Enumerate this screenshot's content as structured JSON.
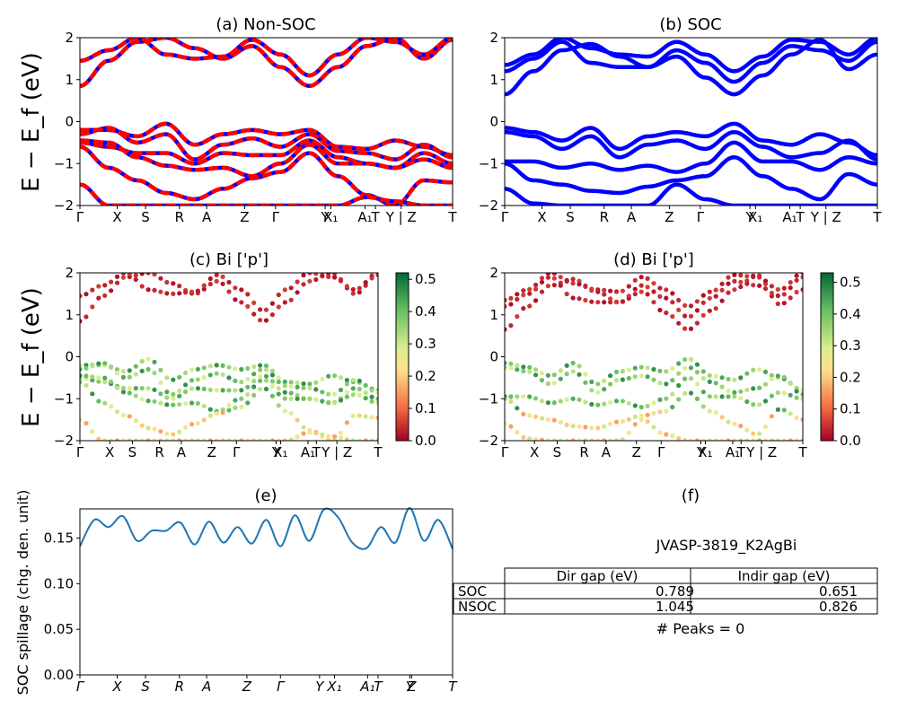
{
  "figure": {
    "ylabel": "E − E_f (eV)",
    "kpath_labels": [
      "Γ",
      "X",
      "S",
      "R",
      "A",
      "Z",
      "Γ",
      "Y",
      "X₁",
      "A₁",
      "T",
      "Y | Z",
      "T"
    ],
    "kpath_labels_italic": [
      "Γ",
      "X",
      "S",
      "R",
      "A",
      "Z",
      "Γ",
      "Y",
      "X₁",
      "A₁",
      "T",
      "Y",
      "Z",
      "T"
    ]
  },
  "panels": {
    "a": {
      "title": "(a) Non-SOC",
      "yticks": [
        "2",
        "1",
        "0",
        "−1",
        "−2"
      ]
    },
    "b": {
      "title": "(b) SOC",
      "yticks": [
        "2",
        "1",
        "0",
        "−1",
        "−2"
      ]
    },
    "c": {
      "title": "(c)  Bi ['p']",
      "yticks": [
        "2",
        "1",
        "0",
        "−1",
        "−2"
      ],
      "colorbar_ticks": [
        "0.5",
        "0.4",
        "0.3",
        "0.2",
        "0.1",
        "0.0"
      ]
    },
    "d": {
      "title": "(d) Bi ['p']",
      "yticks": [
        "2",
        "1",
        "0",
        "−1",
        "−2"
      ],
      "colorbar_ticks": [
        "0.5",
        "0.4",
        "0.3",
        "0.2",
        "0.1",
        "0.0"
      ]
    },
    "e": {
      "title": "(e)",
      "ylabel": "SOC spillage (chg. den. unit)",
      "yticks": [
        "0.15",
        "0.10",
        "0.05",
        "0.00"
      ]
    },
    "f": {
      "title": "(f)",
      "material": "JVASP-3819_K2AgBi",
      "table": {
        "headers": [
          "",
          "Dir gap (eV)",
          "Indir gap (eV)"
        ],
        "rows": [
          [
            "SOC",
            "0.789",
            "0.651"
          ],
          [
            "NSOC",
            "1.045",
            "0.826"
          ]
        ]
      },
      "peaks": "# Peaks = 0"
    }
  },
  "colors": {
    "nonsoc_red": "#ff0000",
    "nonsoc_blue": "#0000ff",
    "soc_blue": "#0000ff",
    "spillage_line": "#1f77b4",
    "cmap": [
      "#a50026",
      "#f46d43",
      "#fee08b",
      "#d9ef8b",
      "#66bd63",
      "#006837"
    ]
  },
  "chart_data": [
    {
      "type": "line",
      "title": "(a) Non-SOC",
      "ylabel": "E − E_f (eV)",
      "ylim": [
        -2,
        2
      ],
      "x_ticks": [
        "Γ",
        "X",
        "S",
        "R",
        "A",
        "Z",
        "Γ",
        "Y",
        "X₁",
        "A₁",
        "T",
        "Y | Z",
        "T"
      ],
      "series": [
        {
          "values": [
            0.85,
            1.45,
            1.9,
            2.0,
            1.75,
            1.5,
            1.8,
            1.3,
            0.85,
            1.3,
            1.8,
            2.0,
            1.5,
            1.95
          ]
        },
        {
          "values": [
            1.45,
            1.7,
            2.0,
            1.6,
            1.5,
            1.55,
            1.95,
            1.6,
            1.1,
            1.6,
            2.0,
            1.9,
            1.6,
            2.0
          ]
        },
        {
          "values": [
            -0.2,
            -0.2,
            -0.35,
            -0.05,
            -0.55,
            -0.3,
            -0.2,
            -0.3,
            -0.2,
            -0.6,
            -0.65,
            -0.45,
            -0.6,
            -0.8
          ]
        },
        {
          "values": [
            -0.3,
            -0.15,
            -0.5,
            -0.3,
            -0.9,
            -0.55,
            -0.4,
            -0.6,
            -0.3,
            -0.7,
            -0.75,
            -0.9,
            -0.55,
            -0.85
          ]
        },
        {
          "values": [
            -0.5,
            -0.6,
            -0.75,
            -0.75,
            -1.0,
            -0.75,
            -0.8,
            -0.8,
            -0.45,
            -0.85,
            -1.0,
            -1.1,
            -0.75,
            -1.0
          ]
        },
        {
          "values": [
            -0.45,
            -0.5,
            -0.85,
            -1.05,
            -1.15,
            -1.1,
            -1.3,
            -1.0,
            -0.55,
            -1.0,
            -1.0,
            -1.1,
            -0.9,
            -1.1
          ]
        },
        {
          "values": [
            -0.6,
            -1.1,
            -1.4,
            -1.7,
            -1.85,
            -1.6,
            -1.35,
            -1.2,
            -0.75,
            -1.3,
            -1.75,
            -2.0,
            -1.4,
            -1.45
          ]
        },
        {
          "values": [
            -1.5,
            -2.0,
            -2.0,
            -2.0,
            -2.0,
            -2.0,
            -2.0,
            -2.0,
            -2.0,
            -2.0,
            -1.8,
            -1.9,
            -2.0,
            -2.0
          ]
        }
      ]
    },
    {
      "type": "line",
      "title": "(b) SOC",
      "ylim": [
        -2,
        2
      ],
      "x_ticks": [
        "Γ",
        "X",
        "S",
        "R",
        "A",
        "Z",
        "Γ",
        "Y",
        "X₁",
        "A₁",
        "T",
        "Y | Z",
        "T"
      ],
      "series": [
        {
          "values": [
            0.65,
            1.2,
            1.7,
            1.85,
            1.55,
            1.3,
            1.55,
            1.05,
            0.65,
            1.1,
            1.6,
            1.95,
            1.25,
            1.6
          ]
        },
        {
          "values": [
            1.2,
            1.5,
            1.9,
            1.4,
            1.3,
            1.3,
            1.7,
            1.4,
            0.95,
            1.4,
            1.8,
            1.7,
            1.45,
            1.9
          ]
        },
        {
          "values": [
            1.35,
            1.6,
            2.0,
            1.75,
            1.6,
            1.55,
            1.9,
            1.6,
            1.2,
            1.55,
            1.95,
            1.9,
            1.6,
            2.0
          ]
        },
        {
          "values": [
            -0.15,
            -0.25,
            -0.45,
            -0.15,
            -0.65,
            -0.35,
            -0.25,
            -0.35,
            -0.05,
            -0.45,
            -0.55,
            -0.3,
            -0.5,
            -0.8
          ]
        },
        {
          "values": [
            -0.25,
            -0.35,
            -0.65,
            -0.35,
            -0.85,
            -0.55,
            -0.45,
            -0.65,
            -0.25,
            -0.6,
            -0.85,
            -0.75,
            -0.45,
            -0.9
          ]
        },
        {
          "values": [
            -0.95,
            -0.95,
            -1.1,
            -1.0,
            -1.15,
            -1.05,
            -1.2,
            -1.0,
            -0.5,
            -0.95,
            -0.95,
            -1.15,
            -0.85,
            -1.0
          ]
        },
        {
          "values": [
            -1.0,
            -1.4,
            -1.5,
            -1.65,
            -1.7,
            -1.55,
            -1.4,
            -1.3,
            -0.85,
            -1.3,
            -1.6,
            -1.85,
            -1.25,
            -1.5
          ]
        },
        {
          "values": [
            -1.6,
            -1.95,
            -2.0,
            -2.0,
            -2.0,
            -2.0,
            -1.5,
            -1.85,
            -2.0,
            -2.0,
            -2.0,
            -2.0,
            -2.0,
            -2.0
          ]
        }
      ]
    },
    {
      "type": "scatter",
      "title": "(c)  Bi ['p']",
      "ylim": [
        -2,
        2
      ],
      "colorbar_range": [
        0.0,
        0.52
      ],
      "note": "band energies as panel (a), colored by Bi p projection"
    },
    {
      "type": "scatter",
      "title": "(d) Bi ['p']",
      "ylim": [
        -2,
        2
      ],
      "colorbar_range": [
        0.0,
        0.53
      ],
      "note": "band energies as panel (b), colored by Bi p projection"
    },
    {
      "type": "line",
      "title": "(e)",
      "ylabel": "SOC spillage (chg. den. unit)",
      "ylim": [
        0.0,
        0.182
      ],
      "x_ticks": [
        "Γ",
        "X",
        "S",
        "R",
        "A",
        "Z",
        "Γ",
        "Y",
        "X₁",
        "A₁",
        "T",
        "Y",
        "Z",
        "T"
      ],
      "values": [
        0.141,
        0.17,
        0.162,
        0.174,
        0.147,
        0.158,
        0.158,
        0.167,
        0.143,
        0.168,
        0.145,
        0.162,
        0.144,
        0.17,
        0.141,
        0.175,
        0.147,
        0.181,
        0.173,
        0.145,
        0.139,
        0.162,
        0.145,
        0.183,
        0.147,
        0.17,
        0.138
      ]
    }
  ]
}
